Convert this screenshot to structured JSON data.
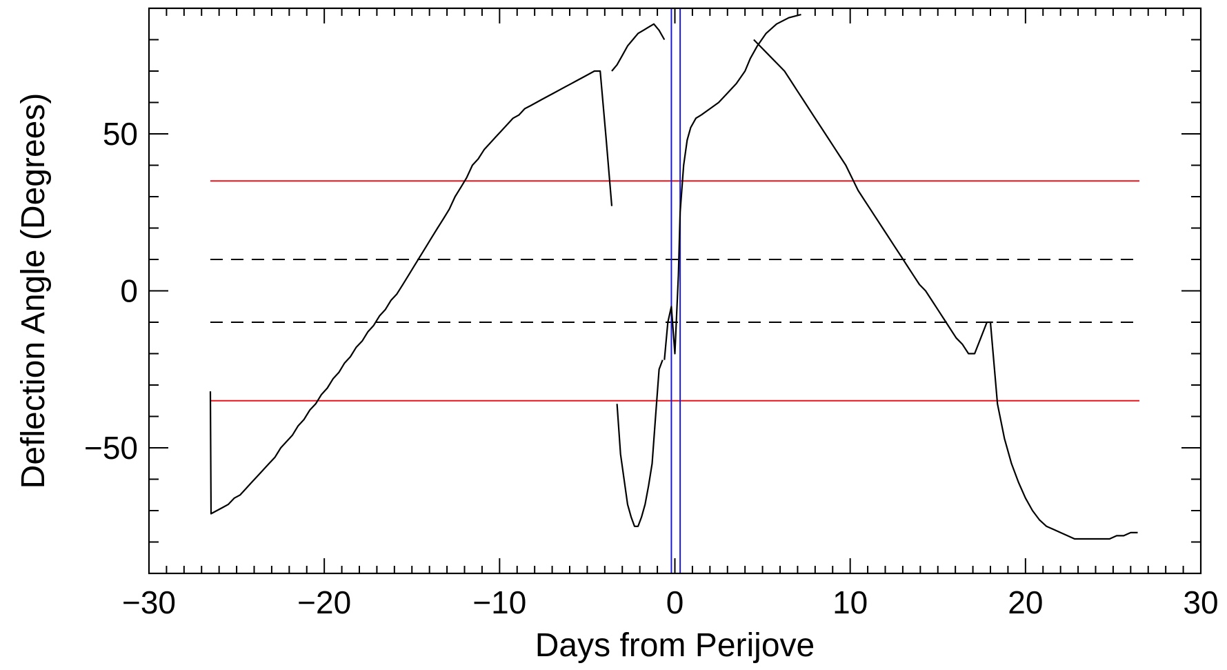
{
  "chart_data": {
    "type": "line",
    "title": "",
    "xlabel": "Days from Perijove",
    "ylabel": "Deflection Angle (Degrees)",
    "xlim": [
      -30,
      30
    ],
    "ylim": [
      -90,
      90
    ],
    "x_ticks": [
      -30,
      -20,
      -10,
      0,
      10,
      20,
      30
    ],
    "x_tick_labels": [
      "−30",
      "−20",
      "−10",
      "0",
      "10",
      "20",
      "30"
    ],
    "y_ticks": [
      -50,
      0,
      50
    ],
    "y_tick_labels": [
      "−50",
      "0",
      "50"
    ],
    "x_minor_step": 1,
    "y_minor_step": 10,
    "grid": false,
    "legend": "none",
    "reference_lines": [
      {
        "orientation": "horizontal",
        "value": 35,
        "x_range": [
          -26.5,
          26.5
        ],
        "style": "solid",
        "color": "#e8141b"
      },
      {
        "orientation": "horizontal",
        "value": -35,
        "x_range": [
          -26.5,
          26.5
        ],
        "style": "solid",
        "color": "#e8141b"
      },
      {
        "orientation": "horizontal",
        "value": 10,
        "x_range": [
          -26.5,
          26.5
        ],
        "style": "dashed",
        "color": "#000000"
      },
      {
        "orientation": "horizontal",
        "value": -10,
        "x_range": [
          -26.5,
          26.5
        ],
        "style": "dashed",
        "color": "#000000"
      },
      {
        "orientation": "vertical",
        "value": -0.2,
        "style": "solid",
        "color": "#1a1ad6"
      },
      {
        "orientation": "vertical",
        "value": 0.3,
        "style": "solid",
        "color": "#1a1ad6"
      }
    ],
    "series": [
      {
        "color": "#000000",
        "segments": [
          {
            "x": [
              -26.5,
              -26.46,
              -26.13,
              -25.8,
              -25.47,
              -25.13,
              -24.8,
              -24.47,
              -24.14,
              -23.81,
              -23.48,
              -23.15,
              -22.81,
              -22.48,
              -22.15,
              -21.82,
              -21.49,
              -21.16,
              -20.83,
              -20.49,
              -20.16,
              -19.83,
              -19.5,
              -19.17,
              -18.84,
              -18.51,
              -18.18,
              -17.84,
              -17.51,
              -17.18,
              -16.85,
              -16.52,
              -16.19,
              -15.86,
              -15.52,
              -15.19,
              -14.86,
              -14.53,
              -14.2,
              -13.87,
              -13.54,
              -13.2,
              -12.87,
              -12.54,
              -12.21,
              -11.88,
              -11.55,
              -11.22,
              -10.88,
              -10.55,
              -10.22,
              -9.89,
              -9.56,
              -9.23,
              -8.9,
              -8.57,
              -8.23,
              -7.9,
              -7.57,
              -7.24,
              -6.91,
              -6.58,
              -6.25,
              -5.91,
              -5.58,
              -5.25,
              -4.92,
              -4.59,
              -4.26,
              -3.93,
              -3.6
            ],
            "y": [
              -32,
              -71,
              -70,
              -69,
              -68,
              -66,
              -65,
              -63,
              -61,
              -59,
              -57,
              -55,
              -53,
              -50,
              -48,
              -46,
              -43,
              -41,
              -38,
              -36,
              -33,
              -31,
              -28,
              -26,
              -23,
              -21,
              -18,
              -16,
              -13,
              -11,
              -8,
              -6,
              -3,
              -1,
              2,
              5,
              8,
              11,
              14,
              17,
              20,
              23,
              26,
              30,
              33,
              36,
              40,
              42,
              45,
              47,
              49,
              51,
              53,
              55,
              56,
              58,
              59,
              60,
              61,
              62,
              63,
              64,
              65,
              66,
              67,
              68,
              69,
              70,
              70,
              49,
              27
            ]
          },
          {
            "x": [
              -3.6,
              -3.3,
              -3.0,
              -2.7,
              -2.4,
              -2.1,
              -1.8,
              -1.5,
              -1.2,
              -0.9,
              -0.6
            ],
            "y": [
              70,
              72,
              75,
              78,
              80,
              82,
              83,
              84,
              85,
              83,
              80
            ]
          },
          {
            "x": [
              -3.3,
              -3.1,
              -2.9,
              -2.7,
              -2.5,
              -2.3,
              -2.1,
              -1.9,
              -1.7,
              -1.5,
              -1.3,
              -1.1,
              -0.9,
              -0.7
            ],
            "y": [
              -36,
              -52,
              -60,
              -68,
              -72,
              -75,
              -75,
              -72,
              -68,
              -62,
              -55,
              -40,
              -25,
              -22
            ]
          },
          {
            "x": [
              -0.6,
              -0.4,
              -0.2,
              0.0,
              0.2,
              0.3,
              0.5,
              0.7,
              0.9,
              1.2,
              1.5
            ],
            "y": [
              -22,
              -10,
              -5,
              -20,
              5,
              25,
              40,
              48,
              52,
              55,
              56
            ]
          },
          {
            "x": [
              1.5,
              2.0,
              2.5,
              3.0,
              3.5,
              4.0,
              4.3,
              4.7,
              5.2,
              5.8,
              6.5,
              7.2
            ],
            "y": [
              56,
              58,
              60,
              63,
              66,
              70,
              74,
              78,
              82,
              85,
              87,
              88
            ]
          },
          {
            "x": [
              4.5,
              4.85,
              5.2,
              5.55,
              5.9,
              6.25,
              6.6,
              6.95,
              7.3,
              7.65,
              8.0,
              8.35,
              8.7,
              9.05,
              9.4,
              9.75,
              10.1,
              10.45,
              10.8,
              11.15,
              11.5,
              11.85,
              12.2,
              12.55,
              12.9,
              13.25,
              13.6,
              13.95,
              14.3,
              14.65,
              15.0,
              15.35,
              15.7,
              16.05,
              16.4,
              16.75,
              17.1,
              17.45,
              17.8,
              18.15
            ],
            "y": [
              80,
              78,
              76,
              74,
              72,
              70,
              67,
              64,
              61,
              58,
              55,
              52,
              49,
              46,
              43,
              40,
              36,
              32,
              29,
              26,
              23,
              20,
              17,
              14,
              11,
              8,
              5,
              2,
              0,
              -3,
              -6,
              -9,
              -12,
              -15,
              -17,
              -20,
              -20,
              -15,
              -10,
              -10
            ]
          },
          {
            "x": [
              18.0,
              18.4,
              18.8,
              19.2,
              19.6,
              20.0,
              20.4,
              20.8,
              21.2,
              21.6,
              22.0,
              22.4,
              22.8,
              23.2,
              23.6,
              24.0,
              24.4,
              24.8,
              25.2,
              25.6,
              26.0,
              26.4
            ],
            "y": [
              -10,
              -36,
              -47,
              -55,
              -61,
              -66,
              -70,
              -73,
              -75,
              -76,
              -77,
              -78,
              -79,
              -79,
              -79,
              -79,
              -79,
              -79,
              -78,
              -78,
              -77,
              -77
            ]
          }
        ]
      }
    ]
  }
}
